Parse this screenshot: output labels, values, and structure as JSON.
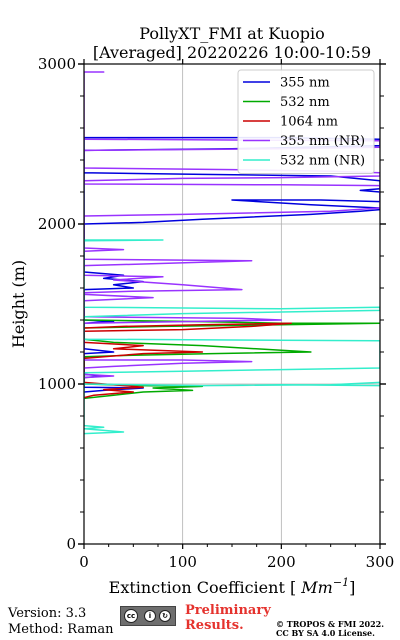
{
  "title_line1": "PollyXT_FMI at Kuopio",
  "title_line2": "[Averaged] 20220226 10:00-10:59",
  "footer": {
    "version": "Version: 3.3",
    "method": "Method: Raman",
    "preliminary_line1": "Preliminary",
    "preliminary_line2": "Results.",
    "copyright_line1": "© TROPOS & FMI 2022.",
    "copyright_line2": "CC BY SA 4.0 License.",
    "license_logo": "cc-by-sa-badge"
  },
  "chart_data": {
    "type": "line",
    "title": "PollyXT_FMI at Kuopio\n[Averaged] 20220226 10:00-10:59",
    "xlabel": "Extinction Coefficient [Mm⁻¹]",
    "ylabel": "Height (m)",
    "xlim": [
      0,
      300
    ],
    "ylim": [
      0,
      3000
    ],
    "xticks": [
      0,
      100,
      200,
      300
    ],
    "yticks": [
      0,
      1000,
      2000,
      3000
    ],
    "grid": true,
    "legend_position": "top-right",
    "series": [
      {
        "name": "355 nm",
        "color": "#0000dd",
        "points": [
          [
            0,
            1950
          ],
          [
            0,
            2000
          ],
          [
            60,
            2010
          ],
          [
            120,
            2030
          ],
          [
            230,
            2060
          ],
          [
            280,
            2080
          ],
          [
            300,
            2090
          ],
          [
            300,
            2100
          ],
          [
            230,
            2120
          ],
          [
            150,
            2150
          ],
          [
            240,
            2150
          ],
          [
            300,
            2140
          ],
          [
            300,
            2200
          ],
          [
            280,
            2210
          ],
          [
            300,
            2220
          ],
          [
            300,
            2270
          ],
          [
            250,
            2300
          ],
          [
            120,
            2310
          ],
          [
            0,
            2320
          ],
          [
            0,
            2460
          ],
          [
            150,
            2470
          ],
          [
            300,
            2490
          ],
          [
            300,
            2530
          ],
          [
            200,
            2540
          ],
          [
            0,
            2540
          ],
          [
            0,
            1700
          ],
          [
            40,
            1680
          ],
          [
            20,
            1660
          ],
          [
            60,
            1640
          ],
          [
            30,
            1620
          ],
          [
            50,
            1600
          ],
          [
            0,
            1590
          ],
          [
            0,
            1400
          ],
          [
            30,
            1390
          ],
          [
            0,
            1380
          ],
          [
            0,
            1220
          ],
          [
            30,
            1200
          ],
          [
            0,
            1190
          ],
          [
            0,
            1060
          ],
          [
            20,
            1050
          ],
          [
            0,
            1040
          ],
          [
            0,
            980
          ],
          [
            60,
            975
          ],
          [
            20,
            960
          ],
          [
            0,
            950
          ]
        ]
      },
      {
        "name": "532 nm",
        "color": "#00aa00",
        "points": [
          [
            0,
            1400
          ],
          [
            120,
            1390
          ],
          [
            200,
            1380
          ],
          [
            300,
            1380
          ],
          [
            200,
            1370
          ],
          [
            80,
            1360
          ],
          [
            0,
            1350
          ],
          [
            0,
            1280
          ],
          [
            30,
            1260
          ],
          [
            120,
            1240
          ],
          [
            230,
            1200
          ],
          [
            130,
            1190
          ],
          [
            50,
            1180
          ],
          [
            0,
            1170
          ],
          [
            0,
            1000
          ],
          [
            60,
            990
          ],
          [
            120,
            985
          ],
          [
            70,
            975
          ],
          [
            110,
            960
          ],
          [
            60,
            950
          ],
          [
            30,
            930
          ],
          [
            0,
            910
          ]
        ]
      },
      {
        "name": "1064 nm",
        "color": "#cc0000",
        "points": [
          [
            0,
            1330
          ],
          [
            100,
            1340
          ],
          [
            170,
            1360
          ],
          [
            210,
            1380
          ],
          [
            120,
            1370
          ],
          [
            40,
            1360
          ],
          [
            0,
            1350
          ],
          [
            0,
            1260
          ],
          [
            60,
            1240
          ],
          [
            30,
            1220
          ],
          [
            120,
            1200
          ],
          [
            60,
            1190
          ],
          [
            20,
            1170
          ],
          [
            0,
            1160
          ],
          [
            0,
            1010
          ],
          [
            30,
            995
          ],
          [
            60,
            980
          ],
          [
            20,
            965
          ],
          [
            50,
            950
          ],
          [
            10,
            930
          ],
          [
            0,
            915
          ]
        ]
      },
      {
        "name": "355 nm (NR)",
        "color": "#9933ff",
        "points": [
          [
            0,
            2950
          ],
          [
            20,
            2950
          ],
          [
            0,
            2950
          ],
          [
            0,
            2530
          ],
          [
            150,
            2525
          ],
          [
            300,
            2520
          ],
          [
            300,
            2480
          ],
          [
            200,
            2470
          ],
          [
            0,
            2460
          ],
          [
            0,
            2350
          ],
          [
            150,
            2340
          ],
          [
            250,
            2330
          ],
          [
            300,
            2320
          ],
          [
            300,
            2300
          ],
          [
            200,
            2290
          ],
          [
            100,
            2285
          ],
          [
            0,
            2270
          ],
          [
            0,
            2250
          ],
          [
            200,
            2245
          ],
          [
            300,
            2240
          ],
          [
            300,
            2100
          ],
          [
            250,
            2080
          ],
          [
            100,
            2060
          ],
          [
            0,
            2050
          ],
          [
            0,
            1850
          ],
          [
            40,
            1840
          ],
          [
            0,
            1830
          ],
          [
            0,
            1780
          ],
          [
            170,
            1770
          ],
          [
            60,
            1750
          ],
          [
            0,
            1740
          ],
          [
            0,
            1680
          ],
          [
            80,
            1670
          ],
          [
            30,
            1650
          ],
          [
            100,
            1620
          ],
          [
            160,
            1590
          ],
          [
            50,
            1580
          ],
          [
            0,
            1570
          ],
          [
            0,
            1560
          ],
          [
            70,
            1540
          ],
          [
            0,
            1520
          ],
          [
            0,
            1420
          ],
          [
            160,
            1410
          ],
          [
            200,
            1400
          ],
          [
            100,
            1390
          ],
          [
            0,
            1380
          ],
          [
            0,
            1150
          ],
          [
            100,
            1150
          ],
          [
            170,
            1140
          ],
          [
            100,
            1130
          ],
          [
            30,
            1110
          ],
          [
            0,
            1100
          ],
          [
            0,
            1060
          ],
          [
            30,
            1050
          ],
          [
            0,
            1040
          ]
        ]
      },
      {
        "name": "532 nm (NR)",
        "color": "#33eecc",
        "points": [
          [
            0,
            1900
          ],
          [
            50,
            1900
          ],
          [
            80,
            1900
          ],
          [
            0,
            1895
          ],
          [
            0,
            1480
          ],
          [
            200,
            1470
          ],
          [
            300,
            1480
          ],
          [
            300,
            1460
          ],
          [
            200,
            1450
          ],
          [
            100,
            1440
          ],
          [
            0,
            1420
          ],
          [
            0,
            1280
          ],
          [
            150,
            1275
          ],
          [
            300,
            1270
          ],
          [
            300,
            1100
          ],
          [
            200,
            1090
          ],
          [
            100,
            1080
          ],
          [
            0,
            1070
          ],
          [
            0,
            1000
          ],
          [
            120,
            990
          ],
          [
            250,
            995
          ],
          [
            300,
            1010
          ],
          [
            300,
            990
          ],
          [
            200,
            995
          ],
          [
            120,
            990
          ],
          [
            0,
            1000
          ],
          [
            0,
            740
          ],
          [
            20,
            730
          ],
          [
            0,
            720
          ],
          [
            40,
            700
          ],
          [
            0,
            690
          ]
        ]
      }
    ]
  }
}
